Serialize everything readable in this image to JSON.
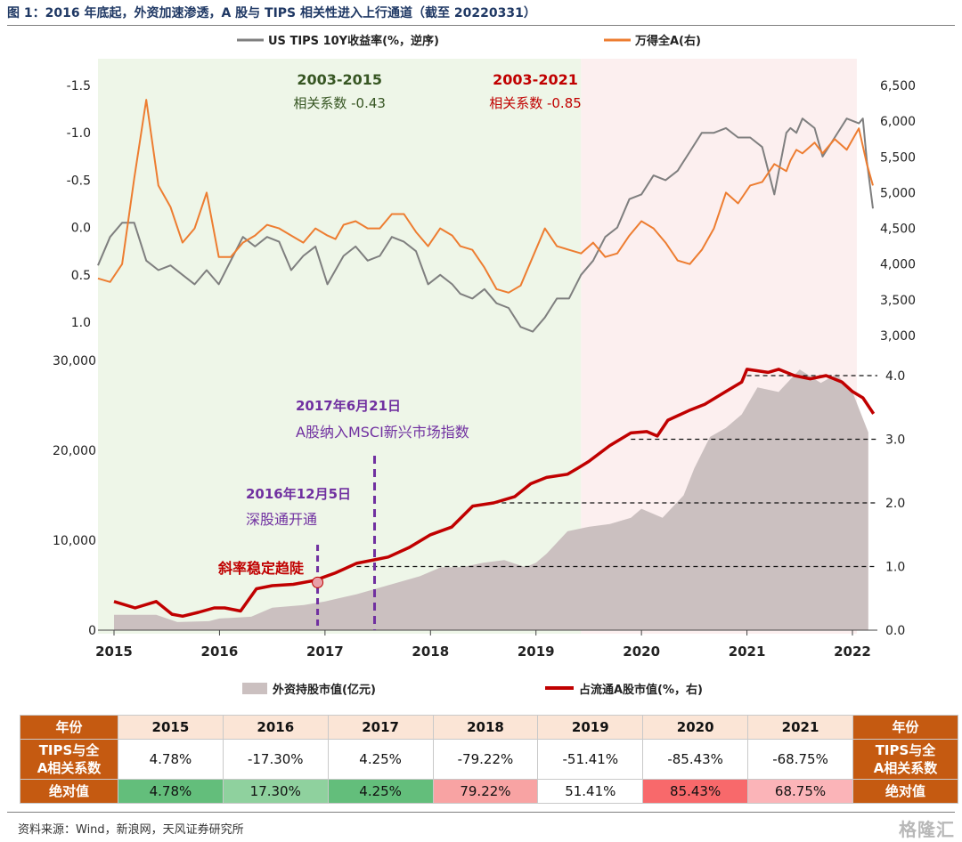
{
  "figure": {
    "title": "图 1：2016 年底起，外资加速渗透，A 股与 TIPS 相关性进入上行通道（截至 20220331）",
    "source": "资料来源：Wind，新浪网，天风证券研究所",
    "watermark": "格隆汇"
  },
  "chart_data": [
    {
      "type": "line",
      "legend_position": "top",
      "x_range": [
        2003,
        2022.25
      ],
      "series": [
        {
          "name": "US TIPS 10Y收益率(%，逆序)",
          "axis": "left",
          "color": "#7f7f7f",
          "x": [
            2003.0,
            2003.3,
            2003.6,
            2003.9,
            2004.2,
            2004.5,
            2004.8,
            2005.1,
            2005.4,
            2005.7,
            2006.0,
            2006.3,
            2006.6,
            2006.9,
            2007.2,
            2007.5,
            2007.8,
            2008.1,
            2008.4,
            2008.7,
            2008.9,
            2009.1,
            2009.4,
            2009.7,
            2010.0,
            2010.3,
            2010.6,
            2010.9,
            2011.2,
            2011.5,
            2011.8,
            2012.0,
            2012.3,
            2012.6,
            2012.9,
            2013.2,
            2013.5,
            2013.8,
            2014.1,
            2014.4,
            2014.7,
            2015.0,
            2015.3,
            2015.6,
            2015.9,
            2016.2,
            2016.5,
            2016.8,
            2017.1,
            2017.4,
            2017.7,
            2018.0,
            2018.3,
            2018.6,
            2018.9,
            2019.2,
            2019.5,
            2019.8,
            2020.1,
            2020.2,
            2020.35,
            2020.5,
            2020.8,
            2021.0,
            2021.3,
            2021.6,
            2021.9,
            2022.0,
            2022.1,
            2022.25
          ],
          "values": [
            0.4,
            0.1,
            -0.05,
            -0.05,
            0.35,
            0.45,
            0.4,
            0.5,
            0.6,
            0.45,
            0.6,
            0.35,
            0.1,
            0.2,
            0.1,
            0.15,
            0.45,
            0.3,
            0.2,
            0.6,
            0.45,
            0.3,
            0.2,
            0.35,
            0.3,
            0.1,
            0.15,
            0.25,
            0.6,
            0.5,
            0.6,
            0.7,
            0.75,
            0.65,
            0.8,
            0.85,
            1.05,
            1.1,
            0.95,
            0.75,
            0.75,
            0.5,
            0.35,
            0.1,
            0.0,
            -0.3,
            -0.35,
            -0.55,
            -0.5,
            -0.6,
            -0.8,
            -1.0,
            -1.0,
            -1.05,
            -0.95,
            -0.95,
            -0.85,
            -0.35,
            -1.0,
            -1.05,
            -1.0,
            -1.15,
            -1.05,
            -0.75,
            -0.95,
            -1.15,
            -1.1,
            -1.15,
            -0.7,
            -0.2
          ]
        },
        {
          "name": "万得全A(右)",
          "axis": "right",
          "color": "#ed7d31",
          "x": [
            2003.0,
            2003.3,
            2003.6,
            2003.9,
            2004.2,
            2004.5,
            2004.8,
            2005.1,
            2005.4,
            2005.7,
            2006.0,
            2006.3,
            2006.6,
            2006.9,
            2007.2,
            2007.5,
            2007.8,
            2008.1,
            2008.4,
            2008.7,
            2008.9,
            2009.1,
            2009.4,
            2009.7,
            2010.0,
            2010.3,
            2010.6,
            2010.9,
            2011.2,
            2011.5,
            2011.8,
            2012.0,
            2012.3,
            2012.6,
            2012.9,
            2013.2,
            2013.5,
            2013.8,
            2014.1,
            2014.4,
            2014.7,
            2015.0,
            2015.3,
            2015.6,
            2015.9,
            2016.2,
            2016.5,
            2016.8,
            2017.1,
            2017.4,
            2017.7,
            2018.0,
            2018.3,
            2018.6,
            2018.9,
            2019.2,
            2019.5,
            2019.8,
            2020.1,
            2020.2,
            2020.35,
            2020.5,
            2020.8,
            2021.0,
            2021.3,
            2021.6,
            2021.9,
            2022.0,
            2022.1,
            2022.25
          ],
          "values": [
            3800,
            3750,
            4000,
            5200,
            6300,
            5100,
            4800,
            4300,
            4500,
            5000,
            4100,
            4100,
            4300,
            4400,
            4550,
            4500,
            4400,
            4300,
            4500,
            4400,
            4350,
            4550,
            4600,
            4500,
            4500,
            4700,
            4700,
            4450,
            4250,
            4500,
            4400,
            4250,
            4200,
            3950,
            3650,
            3600,
            3700,
            4100,
            4500,
            4250,
            4200,
            4150,
            4300,
            4100,
            4150,
            4400,
            4600,
            4500,
            4300,
            4050,
            4000,
            4200,
            4500,
            5000,
            4850,
            5100,
            5150,
            5400,
            5300,
            5450,
            5600,
            5550,
            5700,
            5550,
            5750,
            5600,
            5900,
            5650,
            5400,
            5100
          ]
        }
      ],
      "y_left": {
        "min": -1.5,
        "max": 1.0,
        "inverted": true,
        "ticks": [
          "-1.5",
          "-1.0",
          "-0.5",
          "0.0",
          "0.5",
          "1.0"
        ]
      },
      "y_right": {
        "min": 3000,
        "max": 6500,
        "ticks": [
          "6,500",
          "6,000",
          "5,500",
          "5,000",
          "4,500",
          "4,000",
          "3,500",
          "3,000"
        ]
      },
      "shaded_regions": [
        {
          "label": "2003-2015",
          "sublabel": "相关系数 -0.43",
          "from": 2003.0,
          "to": 2015.0,
          "color": "#eef6e8",
          "label_color": "#375623",
          "sublabel_color": "#375623"
        },
        {
          "label": "2003-2021",
          "sublabel": "相关系数 -0.85",
          "from": 2015.0,
          "to": 2021.85,
          "color": "#fcefef",
          "label_color": "#c00000",
          "sublabel_color": "#c00000"
        }
      ]
    },
    {
      "type": "area",
      "legend_position": "bottom",
      "x_range": [
        2014.9,
        2022.2
      ],
      "x_ticks": [
        "2015",
        "2016",
        "2017",
        "2018",
        "2019",
        "2020",
        "2021",
        "2022"
      ],
      "series": [
        {
          "name": "外资持股市值(亿元)",
          "axis": "left",
          "color": "#cbc0c0",
          "x": [
            2015.0,
            2015.4,
            2015.6,
            2015.9,
            2016.0,
            2016.3,
            2016.5,
            2016.8,
            2017.0,
            2017.3,
            2017.6,
            2017.9,
            2018.1,
            2018.3,
            2018.5,
            2018.7,
            2018.9,
            2019.0,
            2019.1,
            2019.3,
            2019.5,
            2019.7,
            2019.9,
            2020.0,
            2020.2,
            2020.4,
            2020.5,
            2020.65,
            2020.8,
            2020.95,
            2021.1,
            2021.3,
            2021.5,
            2021.7,
            2021.85,
            2022.0,
            2022.15
          ],
          "values": [
            1700,
            1700,
            900,
            1000,
            1300,
            1500,
            2500,
            2800,
            3200,
            4000,
            5000,
            6000,
            7000,
            7000,
            7500,
            7800,
            7000,
            7500,
            8500,
            11000,
            11500,
            11800,
            12500,
            13500,
            12500,
            15000,
            18000,
            21500,
            22500,
            24000,
            27000,
            26500,
            29000,
            27500,
            28500,
            26500,
            22000
          ]
        },
        {
          "name": "占流通A股市值(%，右)",
          "axis": "right",
          "color": "#c00000",
          "x": [
            2015.0,
            2015.2,
            2015.4,
            2015.55,
            2015.65,
            2015.8,
            2015.95,
            2016.05,
            2016.2,
            2016.35,
            2016.5,
            2016.7,
            2016.9,
            2017.1,
            2017.3,
            2017.45,
            2017.6,
            2017.8,
            2018.0,
            2018.2,
            2018.4,
            2018.6,
            2018.8,
            2018.95,
            2019.1,
            2019.3,
            2019.4,
            2019.5,
            2019.7,
            2019.9,
            2020.05,
            2020.15,
            2020.25,
            2020.45,
            2020.6,
            2020.8,
            2020.95,
            2021.0,
            2021.2,
            2021.3,
            2021.45,
            2021.6,
            2021.75,
            2021.9,
            2022.0,
            2022.1,
            2022.2
          ],
          "values": [
            0.45,
            0.35,
            0.45,
            0.25,
            0.22,
            0.28,
            0.35,
            0.35,
            0.3,
            0.65,
            0.7,
            0.72,
            0.78,
            0.9,
            1.05,
            1.1,
            1.15,
            1.3,
            1.5,
            1.62,
            1.95,
            2.0,
            2.1,
            2.3,
            2.4,
            2.45,
            2.55,
            2.65,
            2.9,
            3.1,
            3.12,
            3.05,
            3.3,
            3.45,
            3.55,
            3.75,
            3.9,
            4.1,
            4.05,
            4.1,
            4.0,
            3.95,
            4.0,
            3.9,
            3.75,
            3.65,
            3.4
          ]
        }
      ],
      "y_left": {
        "min": 0,
        "max": 30000,
        "ticks": [
          "0",
          "10,000",
          "20,000",
          "30,000"
        ]
      },
      "y_right": {
        "min": 0,
        "max": 4.3,
        "ticks": [
          "0.0",
          "1.0",
          "2.0",
          "3.0",
          "4.0"
        ]
      },
      "reference_lines_right": [
        1.0,
        2.0,
        3.0,
        4.0
      ],
      "annotations": [
        {
          "x": 2016.93,
          "date": "2016年12月5日",
          "text": "深股通开通",
          "color": "#7030a0"
        },
        {
          "x": 2017.47,
          "date": "2017年6月21日",
          "text": "A股纳入MSCI新兴市场指数",
          "color": "#7030a0"
        },
        {
          "x": 2016.93,
          "text": "斜率稳定趋陡",
          "color": "#c00000",
          "marker_value": 0.75
        }
      ]
    }
  ],
  "table": {
    "year_header": "年份",
    "corr_header": "TIPS与全A相关系数",
    "abs_header": "绝对值",
    "years": [
      "2015",
      "2016",
      "2017",
      "2018",
      "2019",
      "2020",
      "2021"
    ],
    "correlations": [
      "4.78%",
      "-17.30%",
      "4.25%",
      "-79.22%",
      "-51.41%",
      "-85.43%",
      "-68.75%"
    ],
    "absolute_values": [
      "4.78%",
      "17.30%",
      "4.25%",
      "79.22%",
      "51.41%",
      "85.43%",
      "68.75%"
    ],
    "absolute_colors": [
      "#63be7b",
      "#8fd19e",
      "#63be7b",
      "#f8a3a3",
      "#ffffff",
      "#f8696b",
      "#fbb4b8"
    ]
  }
}
